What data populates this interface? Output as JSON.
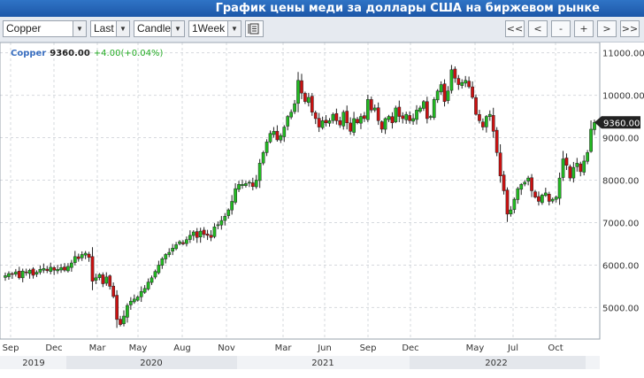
{
  "title": "График цены меди за доллары США на биржевом рынке",
  "toolbar": {
    "symbol": "Copper",
    "price_type": "Last",
    "chart_type": "Candle",
    "interval": "1Week",
    "nav_buttons": [
      "<<",
      "<",
      "-",
      "+",
      ">",
      ">>"
    ]
  },
  "info": {
    "symbol": "Copper",
    "price": "9360.00",
    "change": "+4.00",
    "change_pct": "(+0.04%)"
  },
  "colors": {
    "up": "#22bb22",
    "down": "#cc1111",
    "title_bg": "#1d57a8",
    "info_symbol": "#3a6fc0",
    "change": "#22aa22"
  },
  "chart_data": {
    "type": "candlestick",
    "title": "",
    "y_ticks": [
      "11000.00",
      "10000.00",
      "9000.00",
      "8000.00",
      "7000.00",
      "6000.00",
      "5000.00"
    ],
    "ylim": [
      4300,
      11200
    ],
    "last_price_label": "9360.00",
    "x_tick_labels": [
      "Sep",
      "Dec",
      "Mar",
      "May",
      "Aug",
      "Nov",
      "Mar",
      "Jun",
      "Sep",
      "Dec",
      "May",
      "Jul",
      "Oct"
    ],
    "year_labels": [
      "2019",
      "2020",
      "2021",
      "2022"
    ],
    "weekly_close": [
      5750,
      5800,
      5780,
      5840,
      5700,
      5860,
      5820,
      5880,
      5760,
      5830,
      5900,
      5920,
      5870,
      5950,
      5880,
      5900,
      5940,
      5880,
      5970,
      6050,
      6200,
      6150,
      6250,
      6280,
      6180,
      5620,
      5700,
      5780,
      5560,
      5720,
      5500,
      5260,
      4720,
      4600,
      4800,
      5050,
      5150,
      5200,
      5250,
      5380,
      5450,
      5600,
      5700,
      5850,
      6000,
      6150,
      6250,
      6300,
      6400,
      6480,
      6550,
      6500,
      6600,
      6700,
      6780,
      6650,
      6800,
      6720,
      6700,
      6650,
      6900,
      6950,
      7050,
      7150,
      7300,
      7500,
      7800,
      7900,
      7900,
      7920,
      7950,
      7850,
      8000,
      8400,
      8650,
      8900,
      9100,
      9150,
      8950,
      9050,
      9250,
      9500,
      9600,
      9800,
      10350,
      10050,
      9850,
      9950,
      9600,
      9450,
      9250,
      9400,
      9350,
      9400,
      9550,
      9400,
      9300,
      9600,
      9350,
      9150,
      9450,
      9350,
      9500,
      9450,
      9900,
      9650,
      9700,
      9400,
      9200,
      9450,
      9500,
      9350,
      9700,
      9500,
      9450,
      9550,
      9400,
      9450,
      9650,
      9700,
      9850,
      9450,
      9500,
      9900,
      10100,
      10250,
      9850,
      10100,
      10600,
      10400,
      10250,
      10300,
      10350,
      10200,
      9950,
      9550,
      9400,
      9250,
      9500,
      9550,
      9150,
      8650,
      8100,
      7750,
      7200,
      7300,
      7550,
      7800,
      7900,
      7950,
      8050,
      7750,
      7600,
      7500,
      7650,
      7700,
      7500,
      7550,
      7600,
      8050,
      8500,
      8350,
      8050,
      8300,
      8400,
      8200,
      8450,
      8650,
      9200,
      9360
    ]
  }
}
